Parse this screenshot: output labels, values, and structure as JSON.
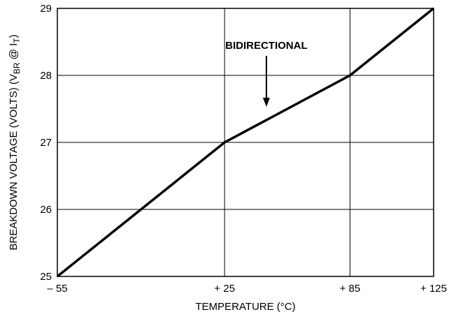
{
  "chart_data": {
    "type": "line",
    "title": "",
    "xlabel": "TEMPERATURE (°C)",
    "ylabel": {
      "prefix": "BREAKDOWN VOLTAGE (VOLTS) (V",
      "sub1": "BR",
      "mid": " @ I",
      "sub2": "T",
      "suffix": ")"
    },
    "xlim": [
      -55,
      125
    ],
    "ylim": [
      25,
      29
    ],
    "x_ticks": [
      {
        "value": -55,
        "label": "– 55"
      },
      {
        "value": 25,
        "label": "+ 25"
      },
      {
        "value": 85,
        "label": "+ 85"
      },
      {
        "value": 125,
        "label": "+ 125"
      }
    ],
    "y_ticks": [
      {
        "value": 25,
        "label": "25"
      },
      {
        "value": 26,
        "label": "26"
      },
      {
        "value": 27,
        "label": "27"
      },
      {
        "value": 28,
        "label": "28"
      },
      {
        "value": 29,
        "label": "29"
      }
    ],
    "grid": true,
    "series": [
      {
        "x": [
          -55,
          25,
          85,
          125
        ],
        "y": [
          25,
          27,
          28,
          29
        ]
      }
    ],
    "annotation": {
      "text": "BIDIRECTIONAL",
      "x": 45,
      "y": 27.5
    }
  }
}
